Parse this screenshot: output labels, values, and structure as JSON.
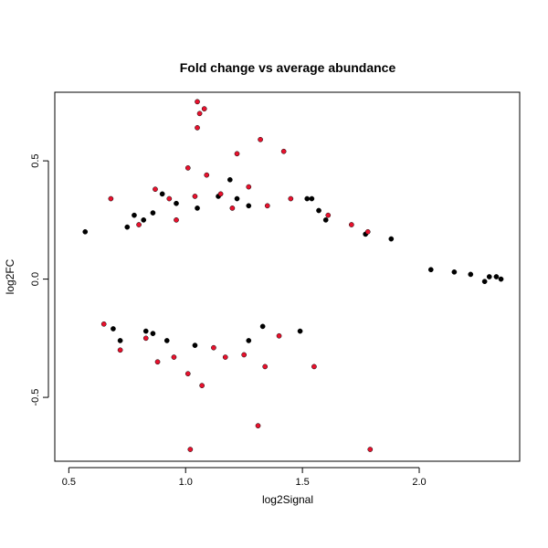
{
  "chart_data": {
    "type": "scatter",
    "title": "Fold change vs average abundance",
    "xlabel": "log2Signal",
    "ylabel": "log2FC",
    "xlim": [
      0.44,
      2.43
    ],
    "ylim": [
      -0.77,
      0.79
    ],
    "xticks": [
      0.5,
      1.0,
      1.5,
      2.0
    ],
    "xtick_labels": [
      "0.5",
      "1.0",
      "1.5",
      "2.0"
    ],
    "yticks": [
      -0.5,
      0.0,
      0.5
    ],
    "ytick_labels": [
      "-0.5",
      "0.0",
      "0.5"
    ],
    "grid": false,
    "legend": "none",
    "colors": {
      "black": "#000000",
      "blue": "#0000ff",
      "red": "#e8112d"
    },
    "series": [
      {
        "color": "black",
        "values": [
          [
            0.57,
            0.2
          ],
          [
            0.75,
            0.22
          ],
          [
            0.78,
            0.27
          ],
          [
            0.82,
            0.25
          ],
          [
            0.86,
            0.28
          ],
          [
            0.9,
            0.36
          ],
          [
            0.96,
            0.32
          ],
          [
            1.05,
            0.3
          ],
          [
            1.14,
            0.35
          ],
          [
            1.19,
            0.42
          ],
          [
            1.22,
            0.34
          ],
          [
            1.27,
            0.31
          ],
          [
            1.52,
            0.34
          ],
          [
            1.54,
            0.34
          ],
          [
            1.57,
            0.29
          ],
          [
            1.6,
            0.25
          ],
          [
            1.77,
            0.19
          ],
          [
            1.88,
            0.17
          ],
          [
            0.69,
            -0.21
          ],
          [
            0.72,
            -0.26
          ],
          [
            0.83,
            -0.22
          ],
          [
            0.86,
            -0.23
          ],
          [
            0.92,
            -0.26
          ],
          [
            1.04,
            -0.28
          ],
          [
            1.27,
            -0.26
          ],
          [
            1.33,
            -0.2
          ],
          [
            1.49,
            -0.22
          ],
          [
            2.05,
            0.04
          ],
          [
            2.15,
            0.03
          ],
          [
            2.3,
            0.01
          ],
          [
            2.35,
            0.0
          ],
          [
            2.33,
            0.01
          ],
          [
            2.28,
            -0.01
          ],
          [
            2.22,
            0.02
          ]
        ]
      },
      {
        "color": "red",
        "values": [
          [
            1.05,
            0.75
          ],
          [
            1.06,
            0.7
          ],
          [
            1.08,
            0.72
          ],
          [
            1.05,
            0.64
          ],
          [
            1.32,
            0.59
          ],
          [
            1.42,
            0.54
          ],
          [
            1.22,
            0.53
          ],
          [
            1.01,
            0.47
          ],
          [
            1.09,
            0.44
          ],
          [
            0.68,
            0.34
          ],
          [
            0.87,
            0.38
          ],
          [
            0.93,
            0.34
          ],
          [
            1.04,
            0.35
          ],
          [
            1.15,
            0.36
          ],
          [
            1.27,
            0.39
          ],
          [
            1.45,
            0.34
          ],
          [
            1.61,
            0.27
          ],
          [
            1.71,
            0.23
          ],
          [
            1.78,
            0.2
          ],
          [
            0.8,
            0.23
          ],
          [
            1.2,
            0.3
          ],
          [
            1.35,
            0.31
          ],
          [
            0.96,
            0.25
          ],
          [
            0.72,
            -0.3
          ],
          [
            0.83,
            -0.25
          ],
          [
            0.88,
            -0.35
          ],
          [
            0.95,
            -0.33
          ],
          [
            1.01,
            -0.4
          ],
          [
            1.07,
            -0.45
          ],
          [
            1.17,
            -0.33
          ],
          [
            1.25,
            -0.32
          ],
          [
            1.34,
            -0.37
          ],
          [
            1.55,
            -0.37
          ],
          [
            1.02,
            -0.72
          ],
          [
            1.31,
            -0.62
          ],
          [
            1.79,
            -0.72
          ],
          [
            1.12,
            -0.29
          ],
          [
            1.4,
            -0.24
          ],
          [
            0.65,
            -0.19
          ]
        ]
      }
    ]
  }
}
